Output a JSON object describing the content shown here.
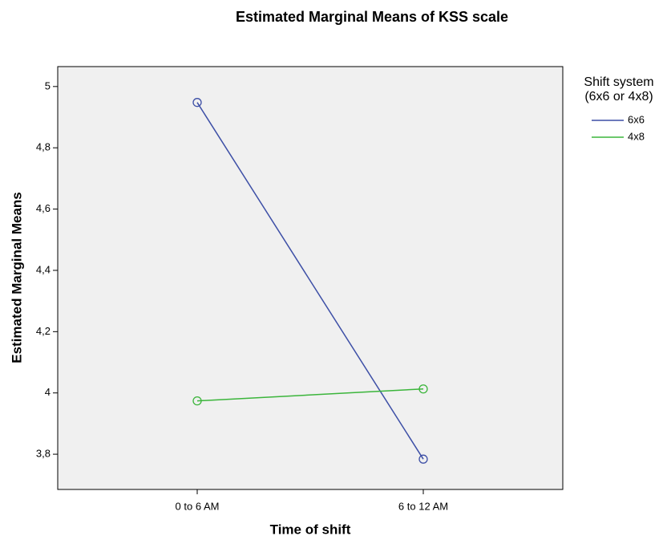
{
  "chart_data": {
    "type": "line",
    "title": "Estimated Marginal Means of KSS scale",
    "x_label": "Time of shift",
    "y_label": "Estimated Marginal Means",
    "categories": [
      "0 to 6 AM",
      "6 to 12 AM"
    ],
    "series": [
      {
        "name": "6x6",
        "color": "#3d4fa6",
        "values": [
          4.948,
          3.784
        ]
      },
      {
        "name": "4x8",
        "color": "#3bb53b",
        "values": [
          3.974,
          4.013
        ]
      }
    ],
    "legend_title": [
      "Shift system",
      "(6x6 or 4x8)"
    ],
    "legend": "right",
    "ylim": [
      3.685,
      5.065
    ],
    "yticks": [
      {
        "value": 3.8,
        "label": "3,8"
      },
      4,
      {
        "value": 4.2,
        "label": "4,2"
      },
      {
        "value": 4.4,
        "label": "4,4"
      },
      {
        "value": 4.6,
        "label": "4,6"
      },
      {
        "value": 4.8,
        "label": "4,8"
      },
      5
    ],
    "markers": "open-circle",
    "grid": false
  }
}
